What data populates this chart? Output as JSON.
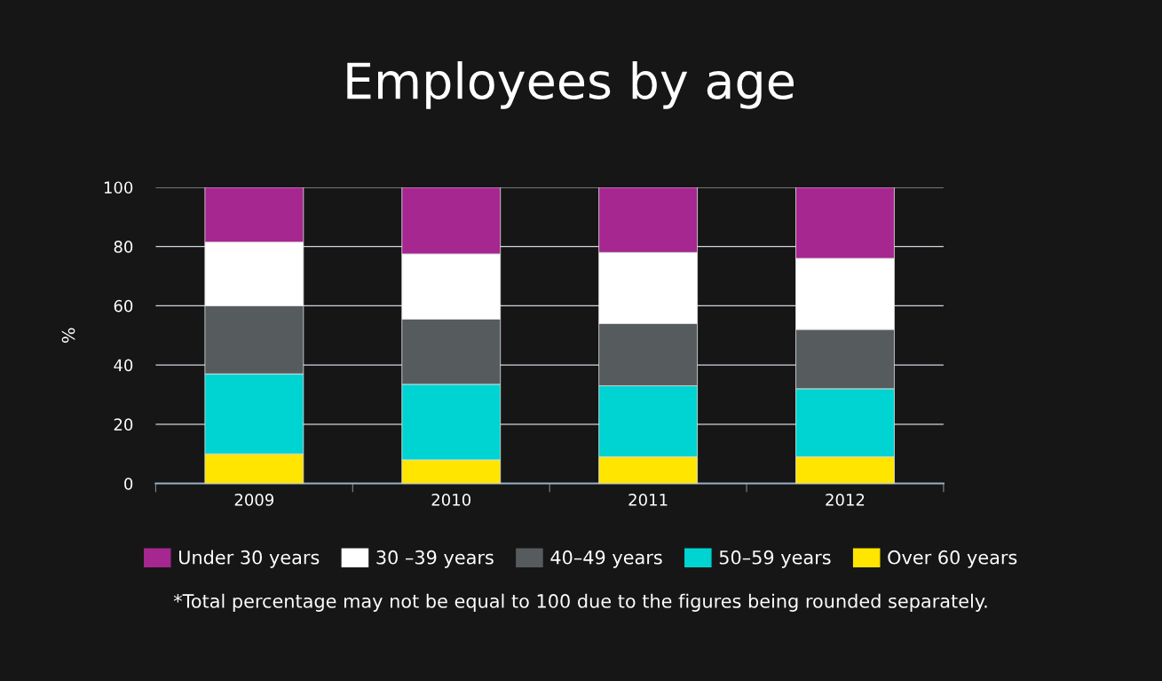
{
  "chart_data": {
    "type": "bar",
    "stacked": true,
    "title": "Employees by age",
    "ylabel": "%",
    "categories": [
      "2009",
      "2010",
      "2011",
      "2012"
    ],
    "series": [
      {
        "name": "Over 60 years",
        "color": "#ffe500",
        "values": [
          10,
          8,
          9,
          9
        ]
      },
      {
        "name": "50–59 years",
        "color": "#00d4d2",
        "values": [
          27,
          25.5,
          24,
          23
        ]
      },
      {
        "name": "40–49 years",
        "color": "#565b5e",
        "values": [
          23,
          22,
          21,
          20
        ]
      },
      {
        "name": "30 –39 years",
        "color": "#ffffff",
        "values": [
          21.5,
          22,
          24,
          24
        ]
      },
      {
        "name": "Under 30 years",
        "color": "#a5278f",
        "values": [
          18.5,
          22.5,
          22,
          24
        ]
      }
    ],
    "ylim": [
      0,
      100
    ],
    "yticks": [
      0,
      20,
      40,
      60,
      80,
      100
    ],
    "grid": "y",
    "legend": "bottom",
    "annotations": [
      "*Total percentage may not be equal to 100 due to the figures being rounded separately."
    ]
  }
}
